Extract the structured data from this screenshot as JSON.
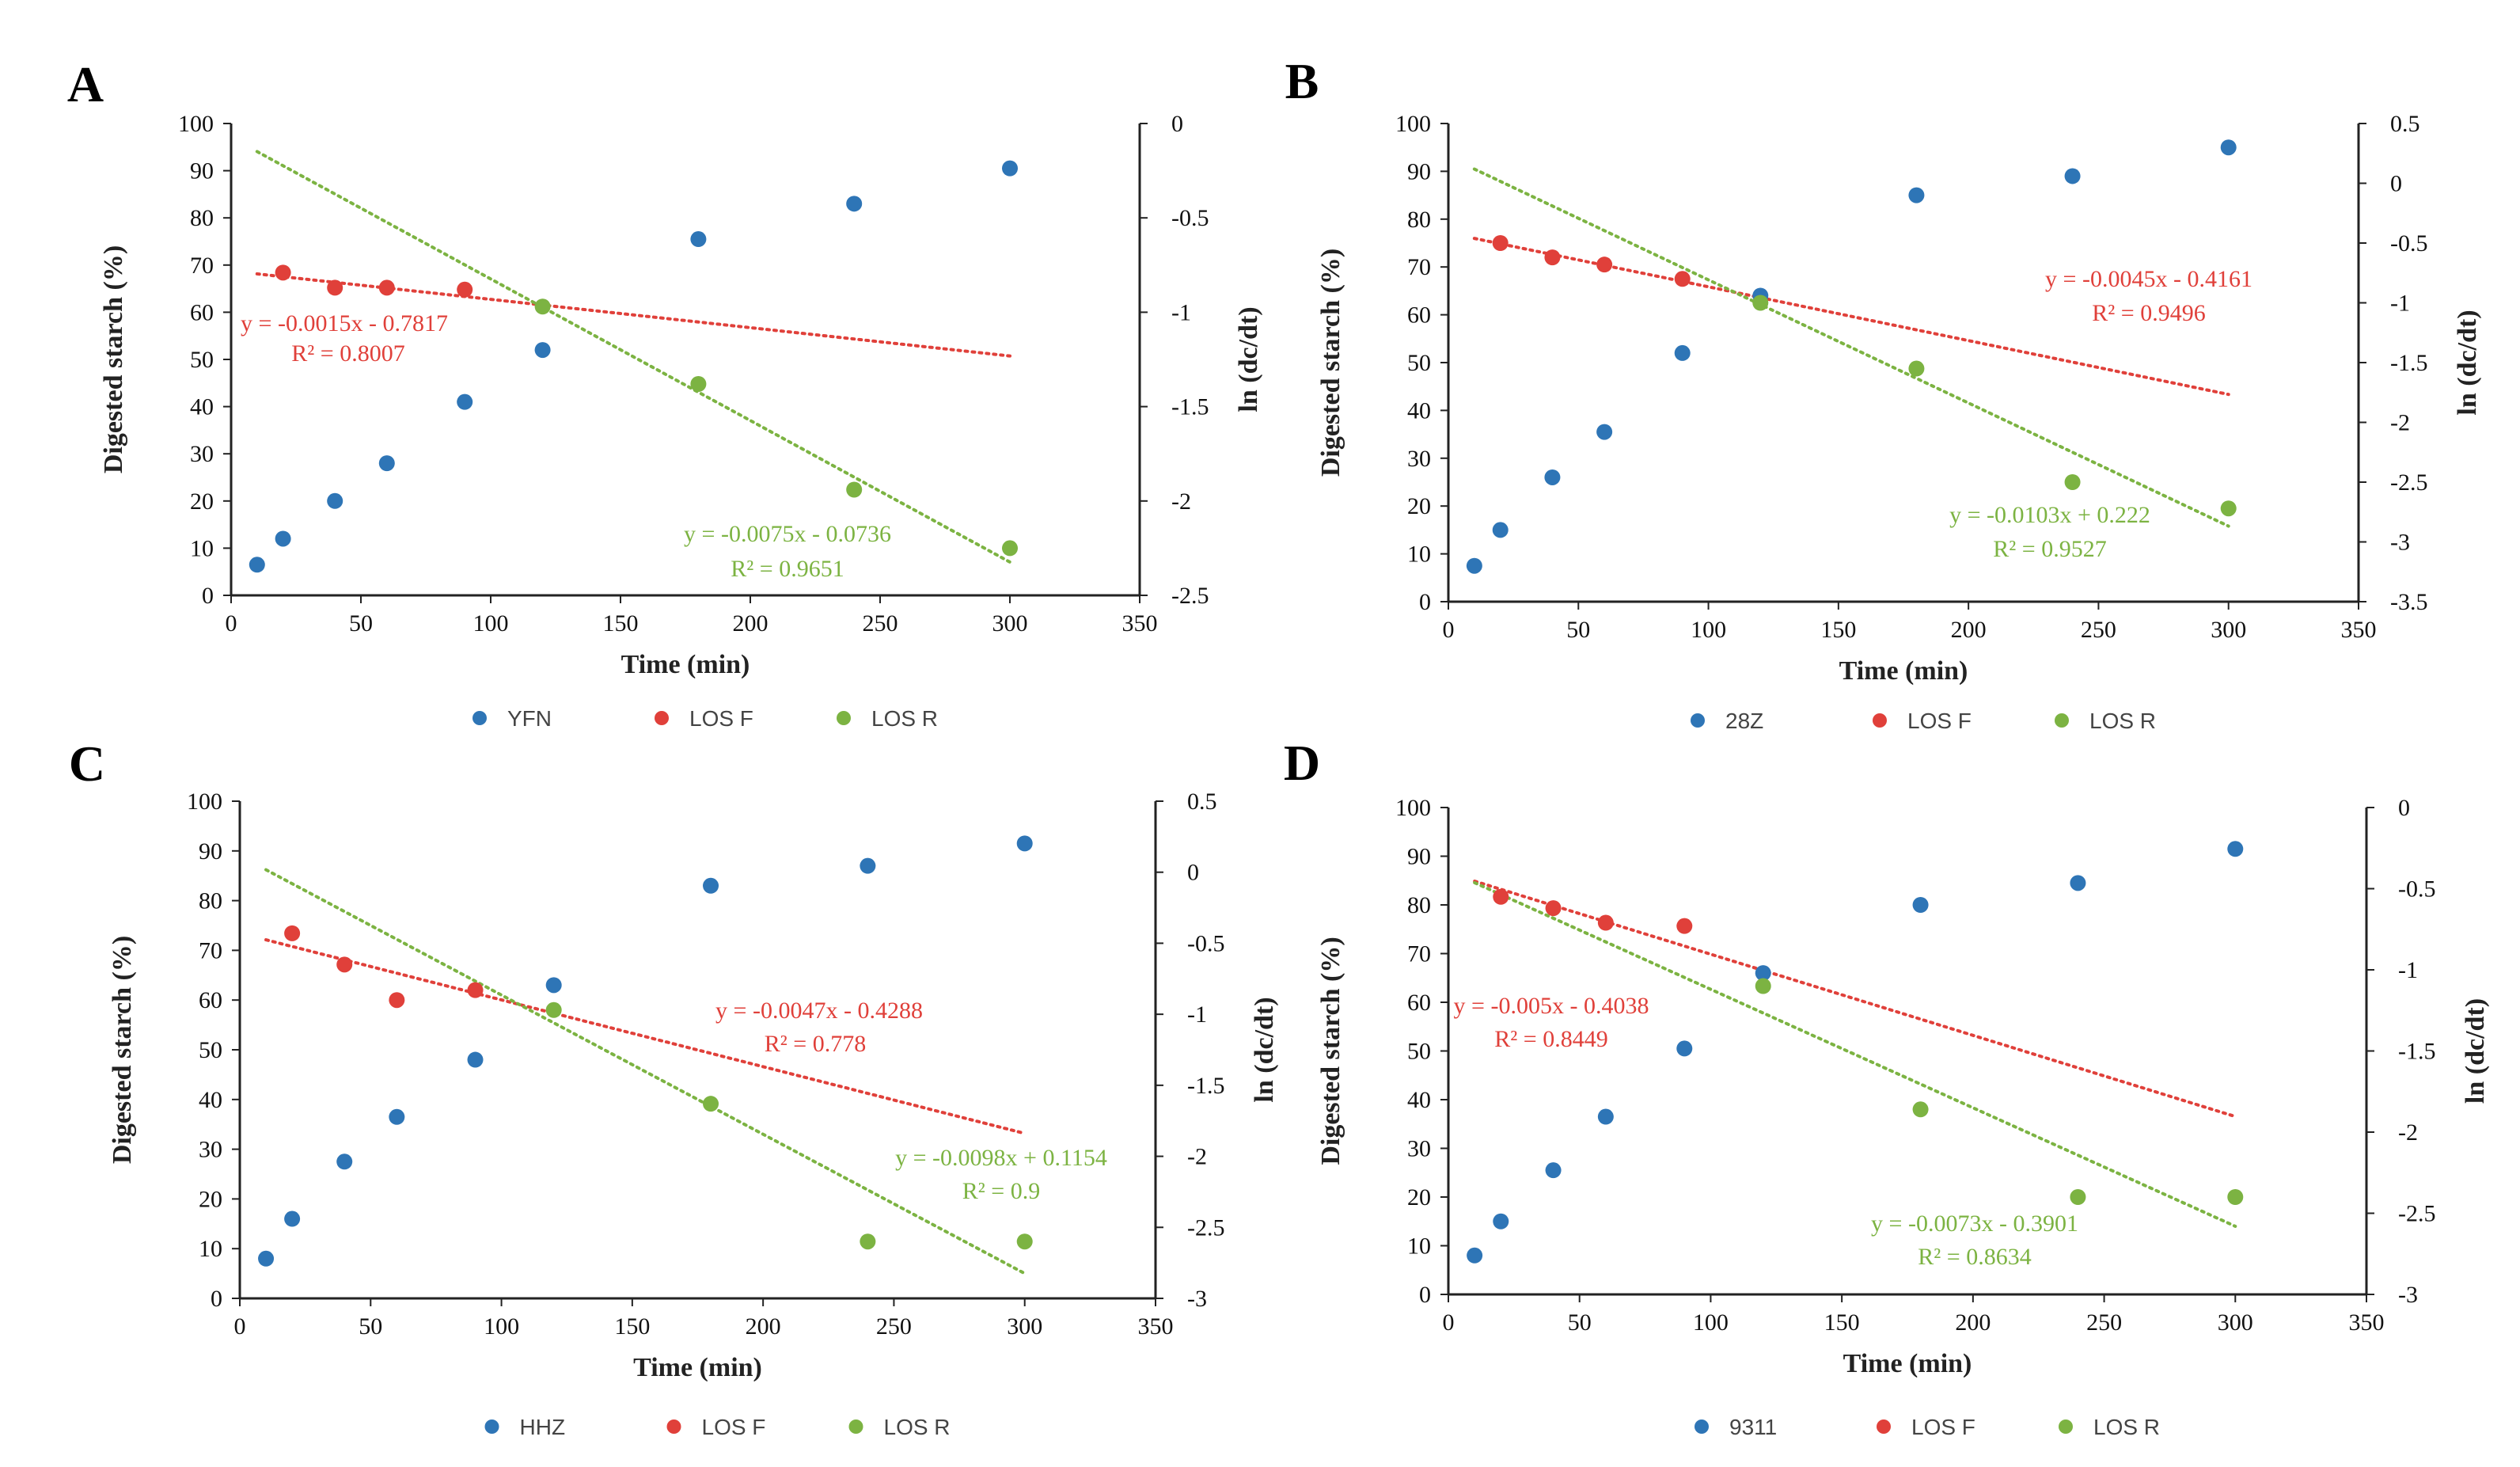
{
  "chart_data": [
    {
      "id": "A",
      "type": "scatter",
      "panel_label": "A",
      "xlabel": "Time (min)",
      "ylabel_left": "Digested starch (%)",
      "ylabel_right": "ln (dc/dt)",
      "xlim": [
        0,
        350
      ],
      "x_ticks": [
        0,
        50,
        100,
        150,
        200,
        250,
        300,
        350
      ],
      "ylim_left": [
        0,
        100
      ],
      "y_ticks_left": [
        0,
        10,
        20,
        30,
        40,
        50,
        60,
        70,
        80,
        90,
        100
      ],
      "ylim_right": [
        -2.5,
        0
      ],
      "y_ticks_right": [
        -2.5,
        -2,
        -1.5,
        -1,
        -0.5,
        0
      ],
      "colors": {
        "digested": "#2E75B6",
        "losf": "#E0403A",
        "losr": "#7CB342"
      },
      "legend": [
        "YFN",
        "LOS F",
        "LOS R"
      ],
      "series": [
        {
          "name": "YFN",
          "axis": "left",
          "x": [
            10,
            20,
            40,
            60,
            90,
            120,
            180,
            240,
            300
          ],
          "y": [
            6.5,
            12,
            20,
            28,
            41,
            52,
            75.5,
            83,
            90.5
          ]
        },
        {
          "name": "LOS F",
          "axis": "right",
          "x": [
            20,
            40,
            60,
            90
          ],
          "y": [
            -0.79,
            -0.87,
            -0.87,
            -0.88
          ]
        },
        {
          "name": "LOS R",
          "axis": "right",
          "x": [
            120,
            180,
            240,
            300
          ],
          "y": [
            -0.97,
            -1.38,
            -1.94,
            -2.25
          ]
        }
      ],
      "trendlines": [
        {
          "series": "LOS F",
          "slope": -0.0015,
          "intercept": -0.7817,
          "x_range": [
            10,
            300
          ],
          "equation": "y = -0.0015x - 0.7817",
          "r2": "R² = 0.8007"
        },
        {
          "series": "LOS R",
          "slope": -0.0075,
          "intercept": -0.0736,
          "x_range": [
            10,
            300
          ],
          "equation": "y = -0.0075x - 0.0736",
          "r2": "R² = 0.9651"
        }
      ]
    },
    {
      "id": "B",
      "type": "scatter",
      "panel_label": "B",
      "xlabel": "Time (min)",
      "ylabel_left": "Digested starch (%)",
      "ylabel_right": "ln (dc/dt)",
      "xlim": [
        0,
        350
      ],
      "x_ticks": [
        0,
        50,
        100,
        150,
        200,
        250,
        300,
        350
      ],
      "ylim_left": [
        0,
        100
      ],
      "y_ticks_left": [
        0,
        10,
        20,
        30,
        40,
        50,
        60,
        70,
        80,
        90,
        100
      ],
      "ylim_right": [
        -3.5,
        0.5
      ],
      "y_ticks_right": [
        -3.5,
        -3,
        -2.5,
        -2,
        -1.5,
        -1,
        -0.5,
        0,
        0.5
      ],
      "colors": {
        "digested": "#2E75B6",
        "losf": "#E0403A",
        "losr": "#7CB342"
      },
      "legend": [
        "28Z",
        "LOS F",
        "LOS R"
      ],
      "series": [
        {
          "name": "28Z",
          "axis": "left",
          "x": [
            10,
            20,
            40,
            60,
            90,
            120,
            180,
            240,
            300
          ],
          "y": [
            7.5,
            15,
            26,
            35.5,
            52,
            64,
            85,
            89,
            95
          ]
        },
        {
          "name": "LOS F",
          "axis": "right",
          "x": [
            20,
            40,
            60,
            90
          ],
          "y": [
            -0.5,
            -0.62,
            -0.68,
            -0.8
          ]
        },
        {
          "name": "LOS R",
          "axis": "right",
          "x": [
            120,
            180,
            240,
            300
          ],
          "y": [
            -1.0,
            -1.55,
            -2.5,
            -2.72
          ]
        }
      ],
      "trendlines": [
        {
          "series": "LOS F",
          "slope": -0.0045,
          "intercept": -0.4161,
          "x_range": [
            10,
            300
          ],
          "equation": "y = -0.0045x - 0.4161",
          "r2": "R² = 0.9496"
        },
        {
          "series": "LOS R",
          "slope": -0.0103,
          "intercept": 0.222,
          "x_range": [
            10,
            300
          ],
          "equation": "y = -0.0103x + 0.222",
          "r2": "R² = 0.9527"
        }
      ]
    },
    {
      "id": "C",
      "type": "scatter",
      "panel_label": "C",
      "xlabel": "Time (min)",
      "ylabel_left": "Digested starch (%)",
      "ylabel_right": "ln (dc/dt)",
      "xlim": [
        0,
        350
      ],
      "x_ticks": [
        0,
        50,
        100,
        150,
        200,
        250,
        300,
        350
      ],
      "ylim_left": [
        0,
        100
      ],
      "y_ticks_left": [
        0,
        10,
        20,
        30,
        40,
        50,
        60,
        70,
        80,
        90,
        100
      ],
      "ylim_right": [
        -3,
        0.5
      ],
      "y_ticks_right": [
        -3,
        -2.5,
        -2,
        -1.5,
        -1,
        -0.5,
        0,
        0.5
      ],
      "colors": {
        "digested": "#2E75B6",
        "losf": "#E0403A",
        "losr": "#7CB342"
      },
      "legend": [
        "HHZ",
        "LOS F",
        "LOS R"
      ],
      "series": [
        {
          "name": "HHZ",
          "axis": "left",
          "x": [
            10,
            20,
            40,
            60,
            90,
            120,
            180,
            240,
            300
          ],
          "y": [
            8,
            16,
            27.5,
            36.5,
            48,
            63,
            83,
            87,
            91.5
          ]
        },
        {
          "name": "LOS F",
          "axis": "right",
          "x": [
            20,
            40,
            60,
            90
          ],
          "y": [
            -0.43,
            -0.65,
            -0.9,
            -0.83
          ]
        },
        {
          "name": "LOS R",
          "axis": "right",
          "x": [
            120,
            180,
            240,
            300
          ],
          "y": [
            -0.97,
            -1.63,
            -2.6,
            -2.6
          ]
        }
      ],
      "trendlines": [
        {
          "series": "LOS F",
          "slope": -0.0047,
          "intercept": -0.4288,
          "x_range": [
            10,
            300
          ],
          "equation": "y = -0.0047x - 0.4288",
          "r2": "R² = 0.778"
        },
        {
          "series": "LOS R",
          "slope": -0.0098,
          "intercept": 0.1154,
          "x_range": [
            10,
            300
          ],
          "equation": "y = -0.0098x + 0.1154",
          "r2": "R² = 0.9"
        }
      ]
    },
    {
      "id": "D",
      "type": "scatter",
      "panel_label": "D",
      "xlabel": "Time (min)",
      "ylabel_left": "Digested starch (%)",
      "ylabel_right": "ln (dc/dt)",
      "xlim": [
        0,
        350
      ],
      "x_ticks": [
        0,
        50,
        100,
        150,
        200,
        250,
        300,
        350
      ],
      "ylim_left": [
        0,
        100
      ],
      "y_ticks_left": [
        0,
        10,
        20,
        30,
        40,
        50,
        60,
        70,
        80,
        90,
        100
      ],
      "ylim_right": [
        -3,
        0
      ],
      "y_ticks_right": [
        -3,
        -2.5,
        -2,
        -1.5,
        -1,
        -0.5,
        0
      ],
      "colors": {
        "digested": "#2E75B6",
        "losf": "#E0403A",
        "losr": "#7CB342"
      },
      "legend": [
        "9311",
        "LOS F",
        "LOS R"
      ],
      "series": [
        {
          "name": "9311",
          "axis": "left",
          "x": [
            10,
            20,
            40,
            60,
            90,
            120,
            180,
            240,
            300
          ],
          "y": [
            8,
            15,
            25.5,
            36.5,
            50.5,
            66,
            80,
            84.5,
            91.5
          ]
        },
        {
          "name": "LOS F",
          "axis": "right",
          "x": [
            20,
            40,
            60,
            90
          ],
          "y": [
            -0.55,
            -0.62,
            -0.71,
            -0.73
          ]
        },
        {
          "name": "LOS R",
          "axis": "right",
          "x": [
            120,
            180,
            240,
            300
          ],
          "y": [
            -1.1,
            -1.86,
            -2.4,
            -2.4
          ]
        }
      ],
      "trendlines": [
        {
          "series": "LOS F",
          "slope": -0.005,
          "intercept": -0.4038,
          "x_range": [
            10,
            300
          ],
          "equation": "y = -0.005x - 0.4038",
          "r2": "R² = 0.8449"
        },
        {
          "series": "LOS R",
          "slope": -0.0073,
          "intercept": -0.3901,
          "x_range": [
            10,
            300
          ],
          "equation": "y = -0.0073x - 0.3901",
          "r2": "R² = 0.8634"
        }
      ]
    }
  ]
}
